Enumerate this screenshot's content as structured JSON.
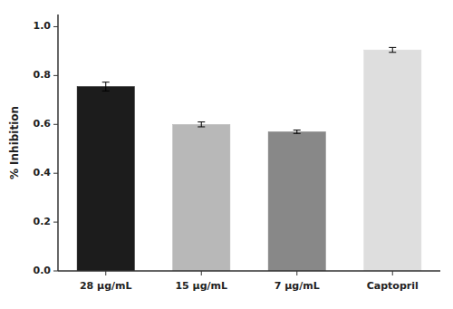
{
  "chart_data": {
    "type": "bar",
    "categories": [
      "28 μg/mL",
      "15 μg/mL",
      "7 μg/mL",
      "Captopril"
    ],
    "values": [
      0.755,
      0.6,
      0.57,
      0.905
    ],
    "errors": [
      0.018,
      0.01,
      0.007,
      0.01
    ],
    "colors": [
      "#1c1c1c",
      "#b8b8b8",
      "#888888",
      "#dedede"
    ],
    "ylabel": "% Inhibition",
    "ylim": [
      0.0,
      1.05
    ],
    "yticks": [
      {
        "value": 0.0,
        "label": "0.0"
      },
      0.2,
      0.4,
      0.6,
      0.8,
      {
        "value": 1.0,
        "label": "1.0"
      }
    ],
    "grid": false
  }
}
